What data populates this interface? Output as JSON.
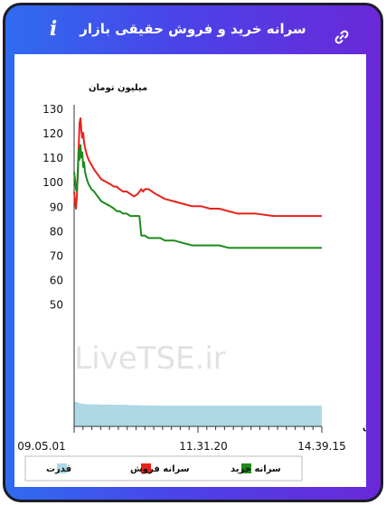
{
  "header": {
    "title": "سرانه خرید و فروش حقیقی بازار",
    "info_label": "i"
  },
  "icons": {
    "info": "info-icon",
    "link": "link-icon"
  },
  "colors": {
    "sell": "#e8221a",
    "buy": "#1c8a1c",
    "power": "#add8e6",
    "header_start": "#2f6cf0",
    "header_end": "#6a28d8"
  },
  "watermark": "LiveTSE.ir",
  "chart_data": {
    "type": "line",
    "ylabel": "میلیون تومان",
    "xlabel": "زمان",
    "yticks": [
      50,
      60,
      70,
      80,
      90,
      100,
      110,
      120,
      130
    ],
    "xticks": [
      "09.05.01",
      "11.31.20",
      "14.39.15"
    ],
    "ylim": [
      0,
      130
    ],
    "x": [
      0,
      1,
      2,
      3,
      4,
      5,
      6,
      7,
      8,
      9,
      10,
      11,
      12,
      14,
      16,
      19,
      22,
      26,
      30,
      35,
      40,
      44,
      47,
      50,
      54,
      58,
      62,
      66,
      70,
      72,
      74,
      76,
      78,
      82,
      86,
      90,
      95,
      100,
      110,
      120,
      130,
      140,
      150,
      160,
      170,
      180,
      200,
      220,
      240,
      273
    ],
    "series": [
      {
        "name": "سرانه فروش",
        "values": [
          96,
          92,
          89,
          94,
          104,
          114,
          124,
          126,
          121,
          118,
          120,
          116,
          114,
          111,
          109,
          107,
          105,
          103,
          101,
          100,
          99,
          98,
          98,
          97,
          96,
          96,
          95,
          94,
          95,
          96,
          97,
          96,
          97,
          97,
          96,
          95,
          94,
          93,
          92,
          91,
          90,
          90,
          89,
          89,
          88,
          87,
          87,
          86,
          86,
          86
        ]
      },
      {
        "name": "سرانه خرید",
        "values": [
          104,
          101,
          97,
          96,
          102,
          113,
          109,
          115,
          110,
          112,
          106,
          108,
          104,
          101,
          99,
          97,
          96,
          94,
          92,
          91,
          90,
          89,
          88,
          88,
          87,
          87,
          86,
          86,
          86,
          86,
          78,
          78,
          78,
          77,
          77,
          77,
          77,
          76,
          76,
          75,
          74,
          74,
          74,
          74,
          73,
          73,
          73,
          73,
          73,
          73
        ]
      },
      {
        "name": "قدرت",
        "values": [
          10,
          10,
          10,
          10,
          9.8,
          9.6,
          9.5,
          9.4,
          9.3,
          9.3,
          9.2,
          9.2,
          9.1,
          9.1,
          9,
          9,
          9,
          9,
          8.9,
          8.9,
          8.9,
          8.8,
          8.8,
          8.8,
          8.8,
          8.8,
          8.7,
          8.7,
          8.7,
          8.7,
          8.6,
          8.6,
          8.6,
          8.6,
          8.6,
          8.6,
          8.5,
          8.5,
          8.5,
          8.5,
          8.5,
          8.5,
          8.5,
          8.5,
          8.5,
          8.5,
          8.5,
          8.5,
          8.5,
          8.5
        ]
      }
    ],
    "legend_position": "bottom",
    "legend": [
      "سرانه خرید",
      "سرانه فروش",
      "قدرت"
    ]
  }
}
